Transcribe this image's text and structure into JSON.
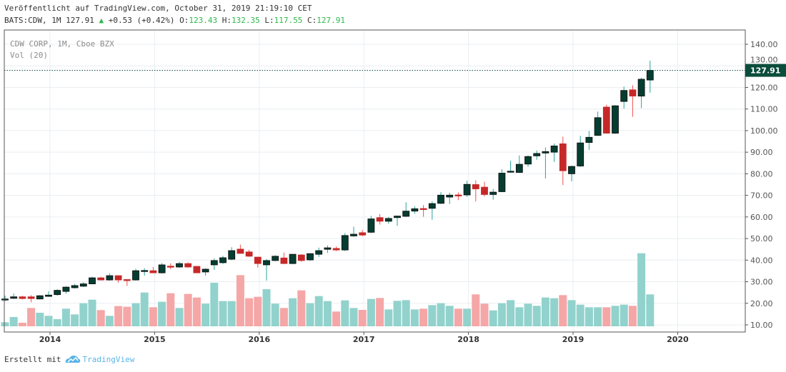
{
  "header": {
    "published": "Veröffentlicht auf TradingView.com, October 31, 2019 21:19:10 CET",
    "symbol": "BATS:CDW, 1M",
    "last": "127.91",
    "change": "+0.53 (+0.42%)",
    "o_label": "O:",
    "o": "123.43",
    "h_label": "H:",
    "h": "132.35",
    "l_label": "L:",
    "l": "117.55",
    "c_label": "C:",
    "c": "127.91"
  },
  "legend": {
    "title": "CDW CORP, 1M, Cboe BZX",
    "volume": "Vol (20)"
  },
  "footer": {
    "made_with": "Erstellt mit",
    "brand": "TradingView"
  },
  "colors": {
    "up": "#053d31",
    "down": "#c62828",
    "up_wick": "#26a69a",
    "down_wick": "#ef5350",
    "vol_up": "#92d2cc",
    "vol_down": "#f5a6a6",
    "last_price": "#0b4d3c"
  },
  "chart_data": {
    "type": "candlestick",
    "interval": "1M",
    "ylim": [
      10,
      140
    ],
    "y_ticks": [
      "140.00",
      "130.00",
      "120.00",
      "110.00",
      "100.00",
      "90.00",
      "80.00",
      "70.00",
      "60.00",
      "50.00",
      "40.00",
      "30.00",
      "20.00",
      "10.00"
    ],
    "x_ticks": [
      "2014",
      "2015",
      "2016",
      "2017",
      "2018",
      "2019",
      "2020"
    ],
    "grid": true,
    "last_price": "127.91",
    "start": "2013-08",
    "ohlc": [
      [
        21.5,
        23.5,
        21,
        22
      ],
      [
        22.3,
        24.5,
        22,
        23
      ],
      [
        23,
        23.5,
        21.8,
        22.2
      ],
      [
        23,
        23.8,
        20.5,
        22.2
      ],
      [
        22,
        23.8,
        21.8,
        23.5
      ],
      [
        23.2,
        25.5,
        23,
        23.8
      ],
      [
        24,
        26.5,
        23.5,
        26
      ],
      [
        25.5,
        27.8,
        24.5,
        27.5
      ],
      [
        27.2,
        29,
        26.8,
        28.2
      ],
      [
        27.9,
        29.8,
        27.5,
        29
      ],
      [
        29,
        32.3,
        28.8,
        31.8
      ],
      [
        31.8,
        32.3,
        30.5,
        30.8
      ],
      [
        30.8,
        33.8,
        30.5,
        32.8
      ],
      [
        32.8,
        33,
        29.5,
        30.8
      ],
      [
        31,
        31,
        28,
        30.8
      ],
      [
        30.8,
        36,
        30.5,
        35.1
      ],
      [
        35.1,
        36.2,
        32.8,
        35.2
      ],
      [
        35.1,
        36.8,
        34,
        34.1
      ],
      [
        34.1,
        38.6,
        33.8,
        37.8
      ],
      [
        37.2,
        38.5,
        35.8,
        37
      ],
      [
        36.8,
        39.2,
        36.4,
        38.4
      ],
      [
        38.4,
        39,
        36.5,
        36.8
      ],
      [
        37.1,
        37.3,
        34.1,
        34.1
      ],
      [
        34.5,
        36.2,
        32.8,
        35.8
      ],
      [
        37.8,
        40.8,
        35.5,
        39.8
      ],
      [
        38.8,
        42,
        38.2,
        41.1
      ],
      [
        40.4,
        46,
        40,
        44.4
      ],
      [
        45.1,
        47.2,
        43,
        43.1
      ],
      [
        43.8,
        44.8,
        41.5,
        41.8
      ],
      [
        41.4,
        41.4,
        36.5,
        38.4
      ],
      [
        37.8,
        40.5,
        30.5,
        39.8
      ],
      [
        39.8,
        42.2,
        39.5,
        41.8
      ],
      [
        41,
        43.5,
        38.2,
        38.4
      ],
      [
        38.4,
        42.8,
        38.2,
        42.7
      ],
      [
        42.4,
        42.8,
        39.2,
        39.8
      ],
      [
        40.1,
        43.2,
        39.6,
        43
      ],
      [
        42.7,
        45.8,
        41.5,
        44.4
      ],
      [
        45,
        46.8,
        43.3,
        45.7
      ],
      [
        45.4,
        46.3,
        44.2,
        44.7
      ],
      [
        44.7,
        52.5,
        44.2,
        51.4
      ],
      [
        51.2,
        55.5,
        50.8,
        52
      ],
      [
        52.7,
        53.9,
        51,
        51.6
      ],
      [
        52.9,
        60.5,
        52.5,
        59.1
      ],
      [
        59.7,
        61.3,
        56.5,
        58
      ],
      [
        58,
        60,
        56.8,
        59.3
      ],
      [
        59.7,
        60.6,
        55.9,
        60.4
      ],
      [
        60.3,
        66.8,
        60,
        62.7
      ],
      [
        62.7,
        65,
        61.5,
        63.8
      ],
      [
        63.9,
        65.5,
        60.1,
        63.6
      ],
      [
        64,
        67.2,
        58.7,
        66.2
      ],
      [
        66.3,
        71.5,
        66,
        70.1
      ],
      [
        69.2,
        71.2,
        66,
        70.1
      ],
      [
        70.2,
        71.4,
        67.8,
        70
      ],
      [
        70.2,
        76.8,
        69.3,
        75.1
      ],
      [
        75,
        77,
        67.2,
        73
      ],
      [
        73.8,
        76.3,
        69.5,
        70.4
      ],
      [
        70.4,
        73,
        68,
        71.5
      ],
      [
        71.7,
        82.1,
        71.5,
        80.3
      ],
      [
        80.8,
        86,
        80.5,
        81.2
      ],
      [
        80.6,
        88.5,
        80.4,
        84.4
      ],
      [
        84.5,
        88.5,
        83.2,
        88
      ],
      [
        88.3,
        90.8,
        86.5,
        89.4
      ],
      [
        89.6,
        92.2,
        77.8,
        90.3
      ],
      [
        90,
        94,
        85.5,
        92.9
      ],
      [
        93.9,
        97.2,
        74.8,
        81.4
      ],
      [
        80,
        83.8,
        76.5,
        83.4
      ],
      [
        83.6,
        97.6,
        83.2,
        94.3
      ],
      [
        94.5,
        99.8,
        91,
        96.9
      ],
      [
        97.8,
        108.8,
        97.5,
        106
      ],
      [
        110.9,
        112,
        98.6,
        98.8
      ],
      [
        98.8,
        111.8,
        98.5,
        111.5
      ],
      [
        113.5,
        120.4,
        110.2,
        118.6
      ],
      [
        118.9,
        121,
        106.4,
        116
      ],
      [
        116,
        124.5,
        110.4,
        123.8
      ],
      [
        123.43,
        132.35,
        117.55,
        127.91
      ]
    ],
    "volume_relative": [
      17,
      39,
      15,
      77,
      57,
      44,
      30,
      74,
      50,
      97,
      112,
      68,
      44,
      85,
      82,
      97,
      142,
      80,
      103,
      139,
      77,
      136,
      121,
      95,
      183,
      106,
      106,
      215,
      118,
      124,
      156,
      95,
      77,
      118,
      151,
      97,
      127,
      106,
      62,
      109,
      77,
      69,
      115,
      119,
      71,
      107,
      110,
      71,
      74,
      89,
      97,
      86,
      74,
      74,
      134,
      95,
      67,
      97,
      110,
      80,
      95,
      86,
      121,
      118,
      131,
      110,
      91,
      80,
      80,
      80,
      86,
      91,
      86,
      307,
      134
    ]
  }
}
